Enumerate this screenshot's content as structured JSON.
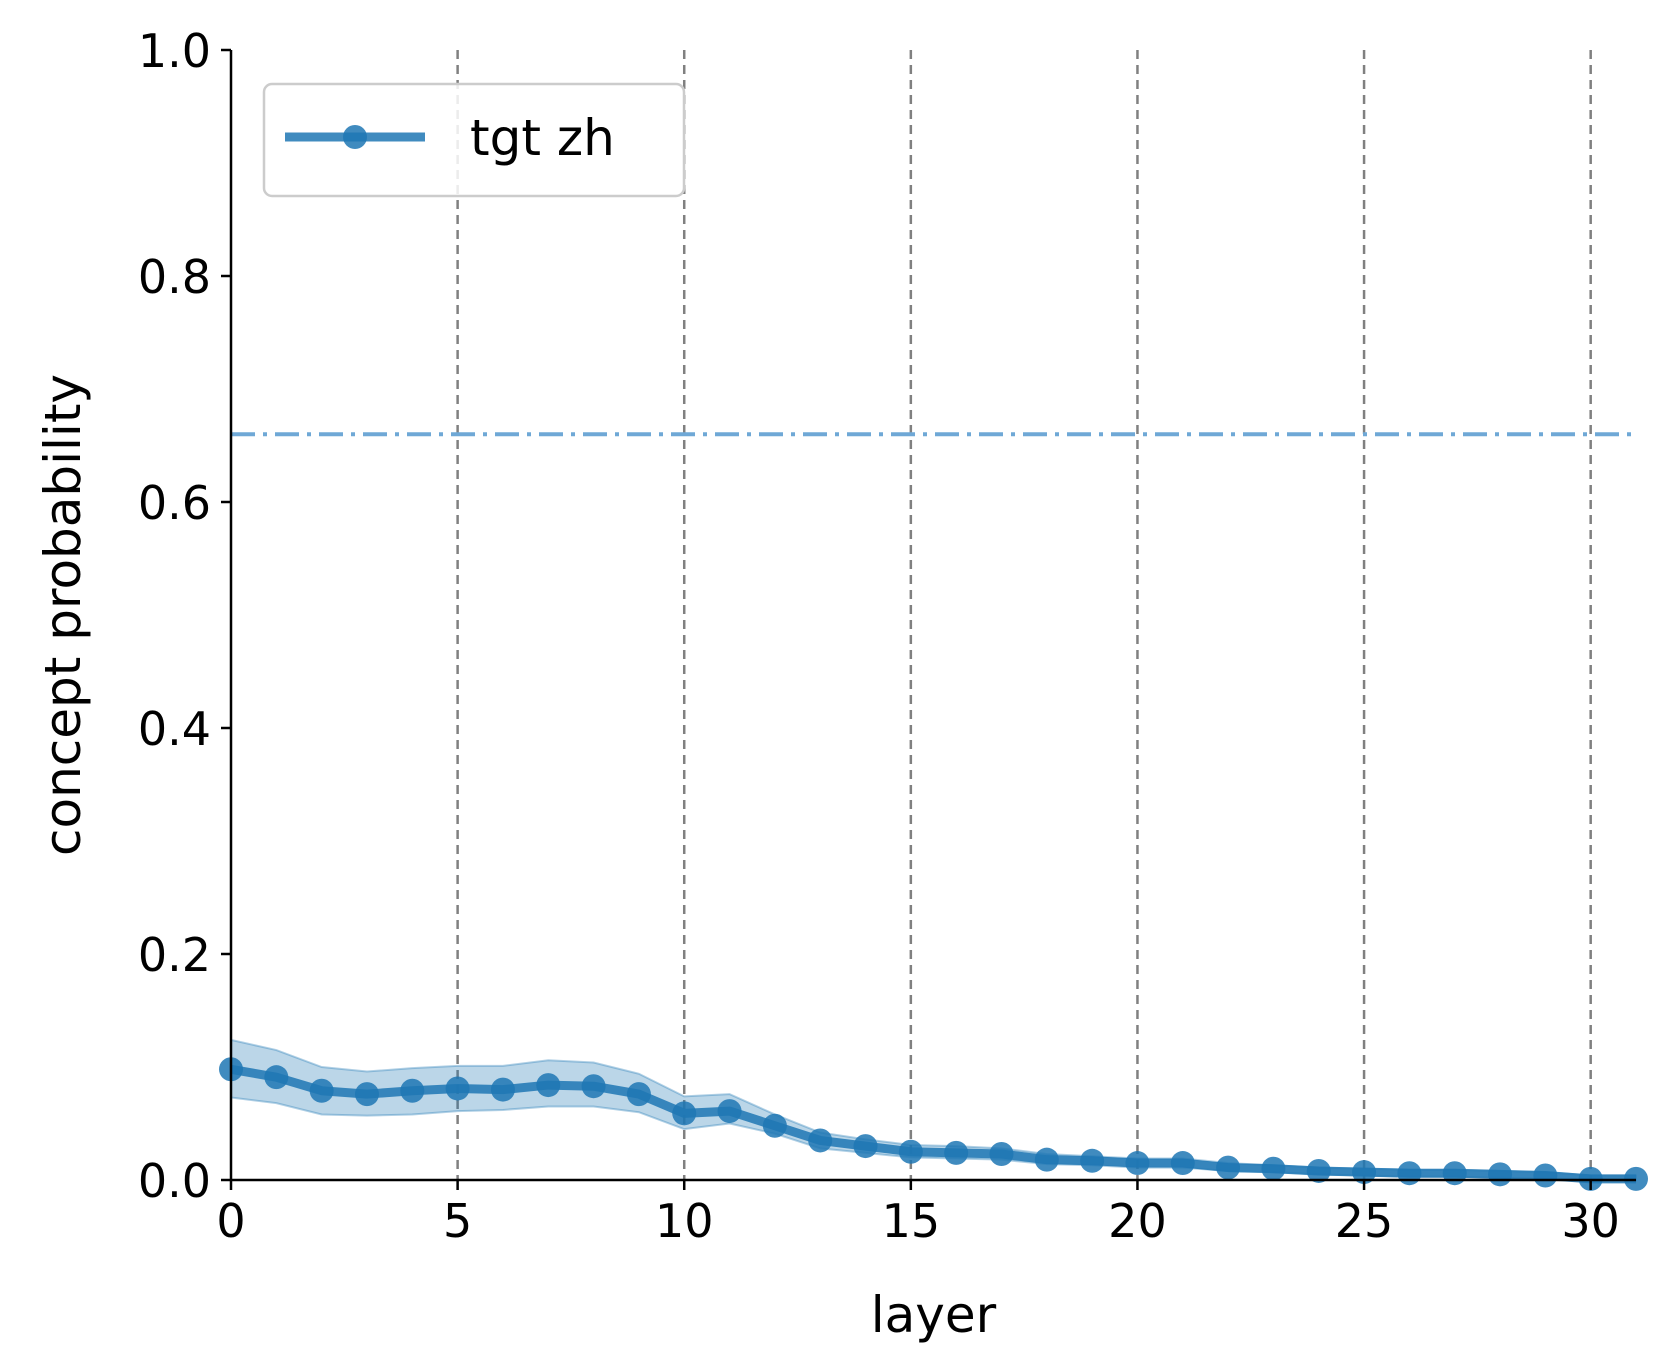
{
  "chart_data": {
    "type": "line",
    "xlabel": "layer",
    "ylabel": "concept probability",
    "xlim": [
      0,
      31
    ],
    "ylim": [
      0,
      1.0
    ],
    "xticks": [
      "0",
      "5",
      "10",
      "15",
      "20",
      "25",
      "30"
    ],
    "yticks": [
      "0.0",
      "0.2",
      "0.4",
      "0.6",
      "0.8",
      "1.0"
    ],
    "vlines": [
      5,
      10,
      15,
      20,
      25,
      30
    ],
    "hline": 0.66,
    "grid": false,
    "legend_position": "upper-left",
    "colors": {
      "series": "#1f77b4",
      "hline": "#6fa8d6",
      "vlines": "#808080"
    },
    "series": [
      {
        "name": "tgt zh",
        "x": [
          0,
          1,
          2,
          3,
          4,
          5,
          6,
          7,
          8,
          9,
          10,
          11,
          12,
          13,
          14,
          15,
          16,
          17,
          18,
          19,
          20,
          21,
          22,
          23,
          24,
          25,
          26,
          27,
          28,
          29,
          30,
          31
        ],
        "values": [
          0.098,
          0.091,
          0.079,
          0.076,
          0.079,
          0.081,
          0.08,
          0.084,
          0.083,
          0.076,
          0.059,
          0.061,
          0.048,
          0.035,
          0.03,
          0.025,
          0.024,
          0.023,
          0.018,
          0.017,
          0.015,
          0.015,
          0.011,
          0.01,
          0.008,
          0.007,
          0.006,
          0.006,
          0.005,
          0.004,
          0.001,
          0.001
        ],
        "lower": [
          0.073,
          0.068,
          0.058,
          0.057,
          0.058,
          0.061,
          0.062,
          0.065,
          0.065,
          0.06,
          0.045,
          0.05,
          0.041,
          0.028,
          0.024,
          0.02,
          0.019,
          0.018,
          0.014,
          0.013,
          0.011,
          0.011,
          0.008,
          0.007,
          0.005,
          0.004,
          0.003,
          0.003,
          0.002,
          0.001,
          0.0,
          0.0
        ],
        "upper": [
          0.124,
          0.115,
          0.1,
          0.096,
          0.099,
          0.101,
          0.101,
          0.106,
          0.104,
          0.094,
          0.074,
          0.076,
          0.058,
          0.042,
          0.036,
          0.031,
          0.03,
          0.028,
          0.023,
          0.021,
          0.019,
          0.019,
          0.015,
          0.013,
          0.011,
          0.01,
          0.009,
          0.009,
          0.008,
          0.007,
          0.004,
          0.004
        ]
      }
    ]
  }
}
